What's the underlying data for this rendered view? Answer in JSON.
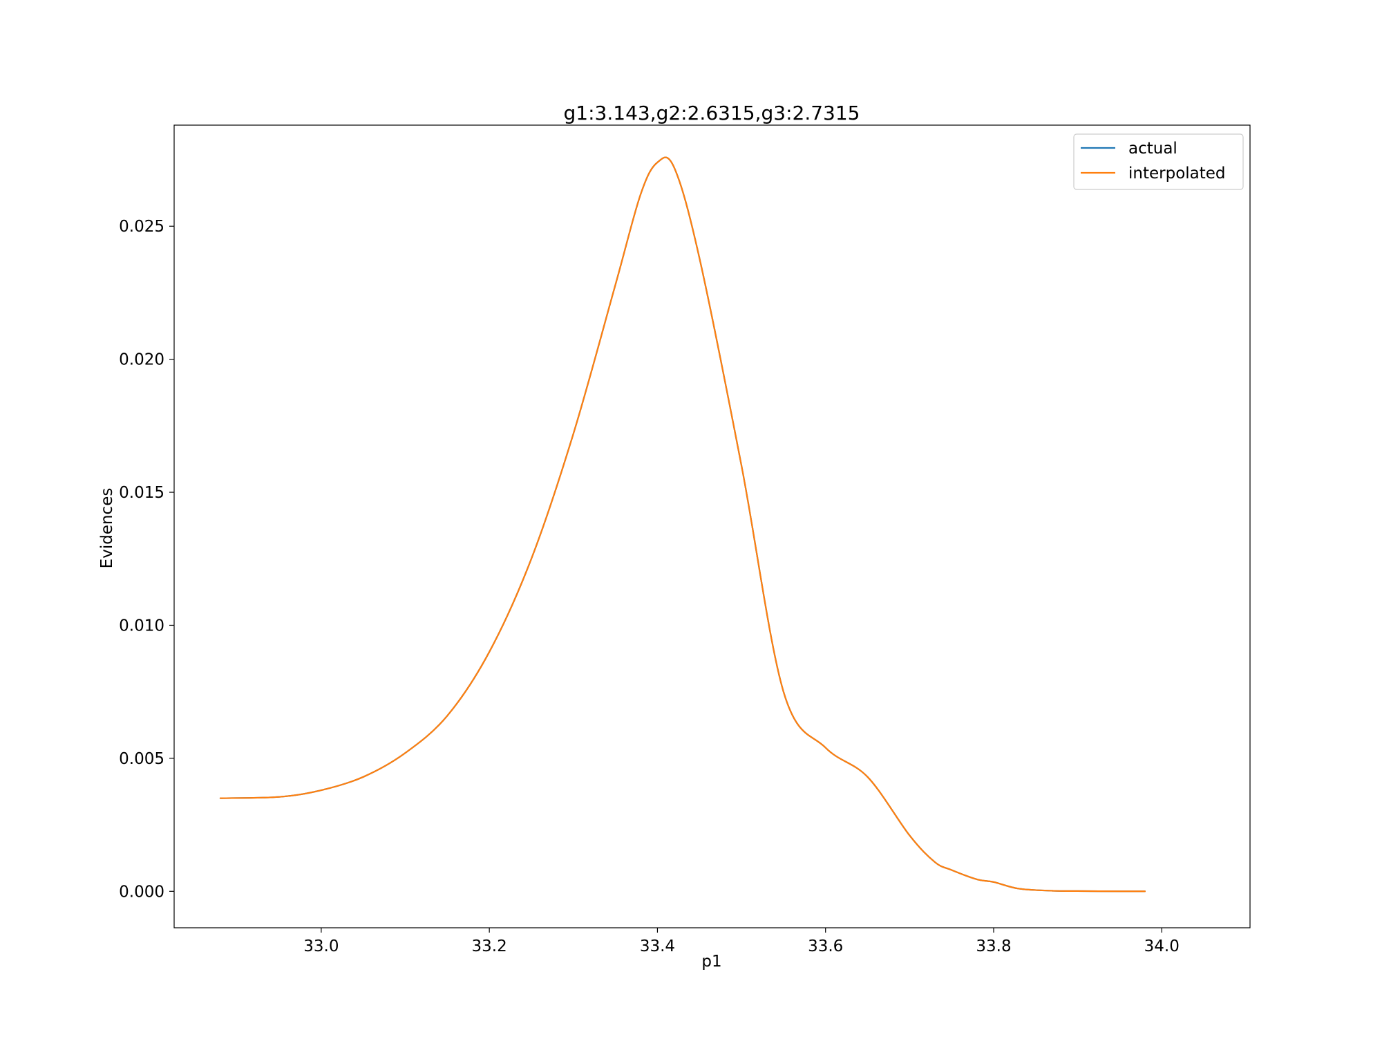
{
  "chart_data": {
    "type": "line",
    "title": "g1:3.143,g2:2.6315,g3:2.7315",
    "xlabel": "p1",
    "ylabel": "Evidences",
    "xlim": [
      32.825,
      34.105
    ],
    "ylim": [
      -0.00137,
      0.0288
    ],
    "x_ticks": [
      33.0,
      33.2,
      33.4,
      33.6,
      33.8,
      34.0
    ],
    "x_tick_labels": [
      "33.0",
      "33.2",
      "33.4",
      "33.6",
      "33.8",
      "34.0"
    ],
    "y_ticks": [
      0.0,
      0.005,
      0.01,
      0.015,
      0.02,
      0.025
    ],
    "y_tick_labels": [
      "0.000",
      "0.005",
      "0.010",
      "0.015",
      "0.020",
      "0.025"
    ],
    "grid": false,
    "legend_position": "top-right",
    "colors": {
      "actual": "#1f77b4",
      "interpolated": "#ff7f0e"
    },
    "x": [
      32.88,
      32.95,
      33.0,
      33.05,
      33.1,
      33.15,
      33.2,
      33.25,
      33.3,
      33.35,
      33.38,
      33.4,
      33.42,
      33.45,
      33.5,
      33.55,
      33.6,
      33.65,
      33.7,
      33.73,
      33.75,
      33.78,
      33.8,
      33.83,
      33.87,
      33.9,
      33.95,
      33.98
    ],
    "series": [
      {
        "name": "actual",
        "values": [
          0.0035,
          0.00355,
          0.0038,
          0.0043,
          0.0052,
          0.0066,
          0.009,
          0.0125,
          0.0172,
          0.0228,
          0.0262,
          0.0274,
          0.0272,
          0.0238,
          0.016,
          0.0075,
          0.0054,
          0.0043,
          0.0021,
          0.0011,
          0.0008,
          0.00045,
          0.00035,
          0.0001,
          2e-05,
          1e-05,
          0.0,
          0.0
        ]
      },
      {
        "name": "interpolated",
        "values": [
          0.0035,
          0.00355,
          0.0038,
          0.0043,
          0.0052,
          0.0066,
          0.009,
          0.0125,
          0.0172,
          0.0228,
          0.0262,
          0.0274,
          0.0272,
          0.0238,
          0.016,
          0.0075,
          0.0054,
          0.0043,
          0.0021,
          0.0011,
          0.0008,
          0.00045,
          0.00035,
          0.0001,
          2e-05,
          1e-05,
          0.0,
          0.0
        ]
      }
    ]
  }
}
